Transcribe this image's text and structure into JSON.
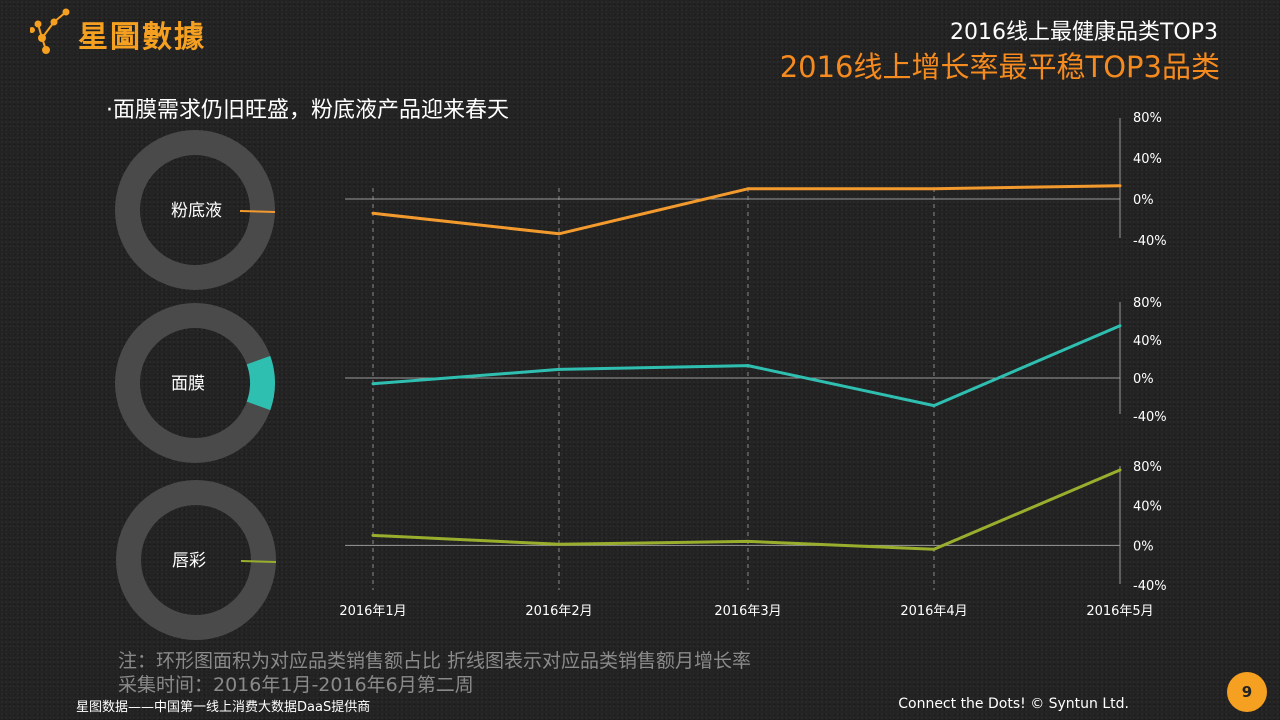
{
  "brand": {
    "name": "星圖數據",
    "icon": "star-network-icon",
    "color": "#f5a020"
  },
  "header": {
    "title_line1": "2016线上最健康品类TOP3",
    "title_line2": "2016线上增长率最平稳TOP3品类"
  },
  "subtitle": "·面膜需求仍旧旺盛，粉底液产品迎来春天",
  "notes": {
    "line1": "注：环形图面积为对应品类销售额占比     折线图表示对应品类销售额月增长率",
    "line2": "采集时间：2016年1月-2016年6月第二周"
  },
  "footer": {
    "left": "星图数据——中国第一线上消费大数据DaaS提供商",
    "right": "Connect the Dots!  © Syntun Ltd.",
    "page": "9"
  },
  "chart_data": {
    "type": "line",
    "x": [
      "2016年1月",
      "2016年2月",
      "2016年3月",
      "2016年4月",
      "2016年5月"
    ],
    "y_unit": "%",
    "yticks": [
      80,
      40,
      0,
      -40
    ],
    "ylim": [
      -40,
      80
    ],
    "panels": [
      {
        "category": "粉底液",
        "color": "#f39a2e",
        "values": [
          -14,
          -34,
          10,
          10,
          13
        ],
        "donut_share": 0.005
      },
      {
        "category": "面膜",
        "color": "#2fbfb0",
        "values": [
          -6,
          9,
          13,
          -29,
          55
        ],
        "donut_share": 0.11
      },
      {
        "category": "唇彩",
        "color": "#9aae2e",
        "values": [
          10,
          1,
          4,
          -4,
          76
        ],
        "donut_share": 0.005
      }
    ]
  }
}
